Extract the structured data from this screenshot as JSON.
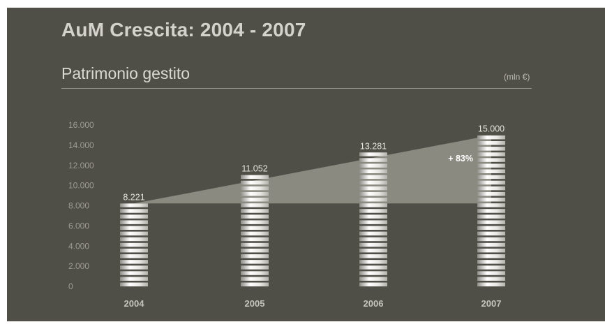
{
  "header": {
    "title": "AuM Crescita: 2004 - 2007",
    "subtitle": "Patrimonio gestito",
    "unit": "(mln €)"
  },
  "chart_data": {
    "type": "bar",
    "title": "AuM Crescita: 2004 - 2007",
    "subtitle": "Patrimonio gestito",
    "ylabel": "(mln €)",
    "xlabel": "",
    "categories": [
      "2004",
      "2005",
      "2006",
      "2007"
    ],
    "values": [
      8221,
      11052,
      13281,
      15000
    ],
    "value_labels": [
      "8.221",
      "11.052",
      "13.281",
      "15.000"
    ],
    "ylim": [
      0,
      16000
    ],
    "yticks": [
      0,
      2000,
      4000,
      6000,
      8000,
      10000,
      12000,
      14000,
      16000
    ],
    "ytick_labels": [
      "0",
      "2.000",
      "4.000",
      "6.000",
      "8.000",
      "10.000",
      "12.000",
      "14.000",
      "16.000"
    ],
    "grid": false,
    "legend": "none",
    "annotation": {
      "text": "+ 83%",
      "from": 8221,
      "to": 15000
    },
    "colors": {
      "background": "#504f47",
      "bar": "#ffffff",
      "growth_band": "#8b8a81",
      "text": "#c9c8c2",
      "axis_text": "#9d9c94"
    }
  }
}
